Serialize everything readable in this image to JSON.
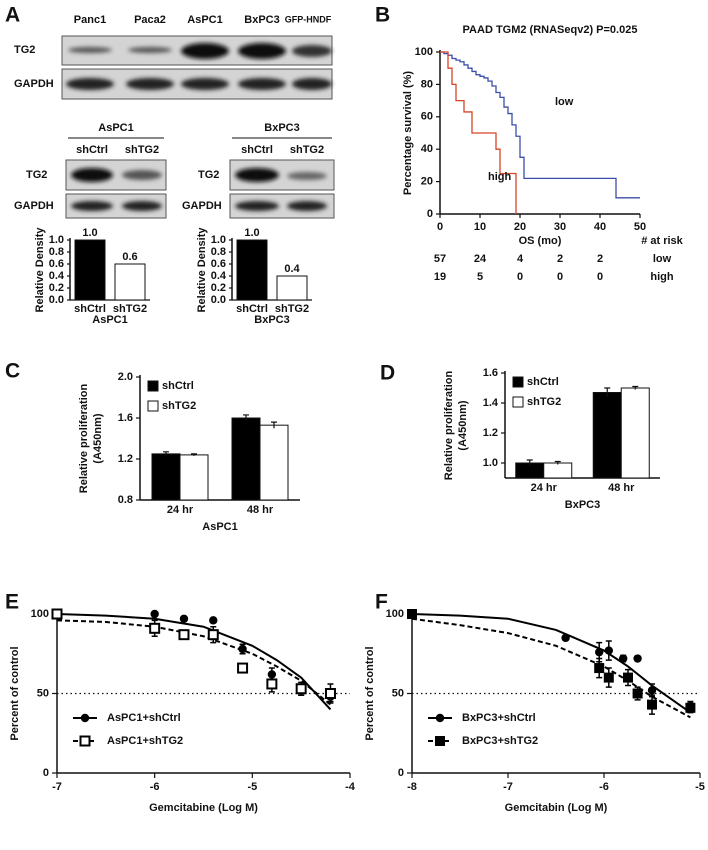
{
  "panel_labels": [
    "A",
    "B",
    "C",
    "D",
    "E",
    "F"
  ],
  "blot_top": {
    "lanes": [
      "Panc1",
      "Paca2",
      "AsPC1",
      "BxPC3",
      "GFP-HNDF"
    ],
    "rows": [
      "TG2",
      "GAPDH"
    ]
  },
  "blot_aspc1": {
    "title": "AsPC1",
    "lanes": [
      "shCtrl",
      "shTG2"
    ],
    "rows": [
      "TG2",
      "GAPDH"
    ]
  },
  "blot_bxpc3": {
    "title": "BxPC3",
    "lanes": [
      "shCtrl",
      "shTG2"
    ],
    "rows": [
      "TG2",
      "GAPDH"
    ]
  },
  "chart_data": [
    {
      "type": "bar",
      "categories": [
        "shCtrl",
        "shTG2"
      ],
      "values": [
        1.0,
        0.6
      ],
      "value_labels": [
        "1.0",
        "0.6"
      ],
      "colors": [
        "#000000",
        "#ffffff"
      ],
      "ylabel": "Relative Density",
      "xlabel": "AsPC1",
      "ylim": [
        0,
        1
      ],
      "yticks": [
        {
          "value": 0,
          "label": "0.0"
        },
        0.2,
        0.4,
        0.6,
        0.8,
        {
          "value": 1,
          "label": "1.0"
        }
      ]
    },
    {
      "type": "bar",
      "categories": [
        "shCtrl",
        "shTG2"
      ],
      "values": [
        1.0,
        0.4
      ],
      "value_labels": [
        "1.0",
        "0.4"
      ],
      "colors": [
        "#000000",
        "#ffffff"
      ],
      "ylabel": "Relative Density",
      "xlabel": "BxPC3",
      "ylim": [
        0,
        1
      ],
      "yticks": [
        {
          "value": 0,
          "label": "0.0"
        },
        0.2,
        0.4,
        0.6,
        0.8,
        {
          "value": 1,
          "label": "1.0"
        }
      ]
    },
    {
      "type": "step",
      "title": "PAAD TGM2 (RNASeqv2) P=0.025",
      "xlabel": "OS (mo)",
      "ylabel": "Percentage survival (%)",
      "xlim": [
        0,
        50
      ],
      "xticks": [
        0,
        10,
        20,
        30,
        40,
        50
      ],
      "ylim": [
        0,
        100
      ],
      "yticks": [
        0,
        20,
        40,
        60,
        80,
        100
      ],
      "series": [
        {
          "name": "low",
          "color": "#3b4fa8",
          "x": [
            0,
            1,
            2,
            3,
            4,
            5,
            6,
            7,
            8,
            9,
            10,
            11,
            12,
            13,
            14,
            15,
            16,
            17,
            18,
            19,
            20,
            21,
            44,
            50
          ],
          "values": [
            100,
            99,
            98,
            96,
            95,
            94,
            92,
            90,
            88,
            86,
            85,
            84,
            82,
            79,
            75,
            72,
            66,
            62,
            55,
            48,
            35,
            22,
            10,
            10
          ]
        },
        {
          "name": "high",
          "color": "#d9432a",
          "x": [
            0,
            2,
            3,
            4,
            6,
            8,
            13,
            14,
            15,
            19
          ],
          "values": [
            100,
            90,
            80,
            70,
            63,
            50,
            50,
            40,
            25,
            0
          ]
        }
      ],
      "at_risk": {
        "title": "# at risk",
        "x": [
          0,
          10,
          20,
          30,
          40
        ],
        "rows": [
          [
            57,
            24,
            4,
            2,
            2
          ],
          [
            19,
            5,
            0,
            0,
            0
          ]
        ]
      }
    },
    {
      "type": "grouped_bar",
      "categories": [
        "24 hr",
        "48 hr"
      ],
      "xlabel": "AsPC1",
      "ylabel": "Relative proliferation",
      "ylabel2": "(A450nm)",
      "ylim": [
        0.8,
        2.0
      ],
      "yticks": [
        0.8,
        1.2,
        1.6,
        {
          "value": 2,
          "label": "2.0"
        }
      ],
      "series": [
        {
          "name": "shCtrl",
          "color": "#000000",
          "values": [
            1.25,
            1.6
          ],
          "errors": [
            0.02,
            0.03
          ]
        },
        {
          "name": "shTG2",
          "color": "#ffffff",
          "values": [
            1.24,
            1.53
          ],
          "errors": [
            0.01,
            0.03
          ]
        }
      ]
    },
    {
      "type": "grouped_bar",
      "categories": [
        "24 hr",
        "48 hr"
      ],
      "xlabel": "BxPC3",
      "ylabel": "Relative proliferation",
      "ylabel2": "(A450nm)",
      "ylim": [
        0.9,
        1.6
      ],
      "yticks": [
        {
          "value": 1,
          "label": "1.0"
        },
        1.2,
        1.4,
        1.6
      ],
      "series": [
        {
          "name": "shCtrl",
          "color": "#000000",
          "values": [
            1.0,
            1.47
          ],
          "errors": [
            0.02,
            0.03
          ]
        },
        {
          "name": "shTG2",
          "color": "#ffffff",
          "values": [
            1.0,
            1.5
          ],
          "errors": [
            0.01,
            0.01
          ]
        }
      ]
    },
    {
      "type": "dose_response",
      "xlabel": "Gemcitabine (Log M)",
      "ylabel": "Percent of control",
      "xlim": [
        -7,
        -4
      ],
      "xticks": [
        -7,
        -6,
        -5,
        -4
      ],
      "ylim": [
        0,
        100
      ],
      "yticks": [
        0,
        50,
        100
      ],
      "hline": 50,
      "series": [
        {
          "name": "AsPC1+shCtrl",
          "color": "#000000",
          "marker": "circle",
          "line_style": "solid",
          "x": [
            -7,
            -6,
            -5.7,
            -5.4,
            -5.1,
            -4.8,
            -4.5,
            -4.2
          ],
          "values": [
            100,
            100,
            97,
            96,
            78,
            62,
            52,
            48
          ],
          "errors": [
            0,
            1,
            1,
            1,
            3,
            4,
            3,
            3
          ],
          "curve_x": [
            -7,
            -6.5,
            -6,
            -5.5,
            -5,
            -4.75,
            -4.5,
            -4.2
          ],
          "curve_values": [
            100,
            99,
            97,
            92,
            80,
            71,
            60,
            40
          ]
        },
        {
          "name": "AsPC1+shTG2",
          "color": "#000000",
          "marker": "open-square",
          "line_style": "dashed",
          "x": [
            -7,
            -6,
            -5.7,
            -5.4,
            -5.1,
            -4.8,
            -4.5,
            -4.2
          ],
          "values": [
            100,
            91,
            87,
            87,
            66,
            56,
            53,
            50
          ],
          "errors": [
            0,
            5,
            2,
            5,
            2,
            5,
            4,
            6
          ],
          "curve_x": [
            -7,
            -6.5,
            -6,
            -5.5,
            -5,
            -4.75,
            -4.5,
            -4.2
          ],
          "curve_values": [
            96,
            95,
            92,
            86,
            75,
            67,
            58,
            43
          ]
        }
      ]
    },
    {
      "type": "dose_response",
      "xlabel": "Gemcitabin (Log M)",
      "ylabel": "Percent of control",
      "xlim": [
        -8,
        -5
      ],
      "xticks": [
        -8,
        -7,
        -6,
        -5
      ],
      "ylim": [
        0,
        100
      ],
      "yticks": [
        0,
        50,
        100
      ],
      "hline": 50,
      "series": [
        {
          "name": "BxPC3+shCtrl",
          "color": "#000000",
          "marker": "circle",
          "line_style": "solid",
          "x": [
            -8,
            -6.4,
            -6.05,
            -5.95,
            -5.8,
            -5.65,
            -5.5,
            -5.1
          ],
          "values": [
            100,
            85,
            76,
            77,
            72,
            72,
            52,
            42
          ],
          "errors": [
            0,
            1,
            6,
            6,
            2,
            1,
            4,
            3
          ],
          "curve_x": [
            -8,
            -7.5,
            -7,
            -6.5,
            -6,
            -5.75,
            -5.5,
            -5.1
          ],
          "curve_values": [
            100,
            99,
            97,
            90,
            77,
            67,
            55,
            38
          ]
        },
        {
          "name": "BxPC3+shTG2",
          "color": "#000000",
          "marker": "square",
          "line_style": "dashed",
          "x": [
            -8,
            -6.05,
            -5.95,
            -5.75,
            -5.65,
            -5.5,
            -5.1
          ],
          "values": [
            100,
            66,
            60,
            60,
            50,
            43,
            41
          ],
          "errors": [
            0,
            6,
            6,
            5,
            4,
            6,
            3
          ],
          "curve_x": [
            -8,
            -7.5,
            -7,
            -6.5,
            -6,
            -5.75,
            -5.5,
            -5.1
          ],
          "curve_values": [
            97,
            93,
            88,
            80,
            67,
            58,
            48,
            35
          ]
        }
      ]
    }
  ]
}
